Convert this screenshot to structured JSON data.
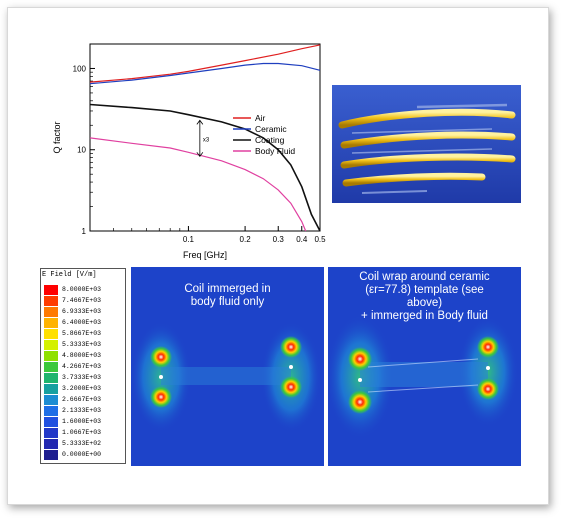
{
  "chart_data": {
    "type": "line",
    "xscale": "log",
    "yscale": "log",
    "xlabel": "Freq [GHz]",
    "ylabel": "Q factor",
    "xlim": [
      0.03,
      0.5
    ],
    "ylim": [
      1,
      200
    ],
    "xticks": [
      "0.1",
      "0.2",
      "0.3",
      "0.4",
      "0.5"
    ],
    "yticks": [
      "1",
      "10",
      "100"
    ],
    "legend_position": "center-right",
    "annotation": "x3",
    "series": [
      {
        "name": "Air",
        "color": "#e02020",
        "x": [
          0.03,
          0.05,
          0.08,
          0.1,
          0.15,
          0.2,
          0.3,
          0.4,
          0.5
        ],
        "y": [
          68,
          75,
          85,
          92,
          110,
          125,
          150,
          175,
          195
        ]
      },
      {
        "name": "Ceramic",
        "color": "#1f3fbf",
        "x": [
          0.03,
          0.05,
          0.08,
          0.1,
          0.15,
          0.2,
          0.25,
          0.3,
          0.4,
          0.5
        ],
        "y": [
          65,
          72,
          82,
          88,
          100,
          110,
          115,
          115,
          108,
          95
        ]
      },
      {
        "name": "Coating",
        "color": "#111111",
        "x": [
          0.03,
          0.05,
          0.08,
          0.1,
          0.15,
          0.2,
          0.25,
          0.3,
          0.35,
          0.4,
          0.45,
          0.5
        ],
        "y": [
          36,
          33,
          30,
          27,
          22,
          18,
          14,
          10,
          6.5,
          3.5,
          1.6,
          1
        ]
      },
      {
        "name": "Body Fluid",
        "color": "#e040a0",
        "x": [
          0.03,
          0.05,
          0.08,
          0.1,
          0.15,
          0.2,
          0.25,
          0.3,
          0.35,
          0.4,
          0.42
        ],
        "y": [
          14,
          12,
          10.5,
          9.3,
          7.3,
          5.7,
          4.4,
          3.2,
          2.2,
          1.3,
          1
        ]
      }
    ]
  },
  "colorbar": {
    "title": "E Field [V/m]",
    "labels": [
      "8.0000E+03",
      "7.4667E+03",
      "6.9333E+03",
      "6.4000E+03",
      "5.8667E+03",
      "5.3333E+03",
      "4.8000E+03",
      "4.2667E+03",
      "3.7333E+03",
      "3.2000E+03",
      "2.6667E+03",
      "2.1333E+03",
      "1.6000E+03",
      "1.0667E+03",
      "5.3333E+02",
      "0.0000E+00"
    ],
    "colors": [
      "#ff0000",
      "#ff3c00",
      "#ff7a00",
      "#ffb300",
      "#ffe000",
      "#d4f000",
      "#8fe000",
      "#3cc83c",
      "#1fb46e",
      "#17a0a0",
      "#1c8cd2",
      "#1e6ee6",
      "#2050e0",
      "#2238c8",
      "#2228b0",
      "#1e1e90"
    ]
  },
  "panels": {
    "left": {
      "text_lines": [
        "Coil immerged in",
        "body fluid only"
      ]
    },
    "right": {
      "text_lines": [
        "Coil wrap around ceramic",
        "(εr=77.8) template (see",
        "above)",
        "+ immerged in Body fluid"
      ]
    }
  },
  "colors": {
    "field_background": "#1d43c9",
    "coil_background": "#2b4fc0",
    "coil_wire": "#f2c21a"
  }
}
